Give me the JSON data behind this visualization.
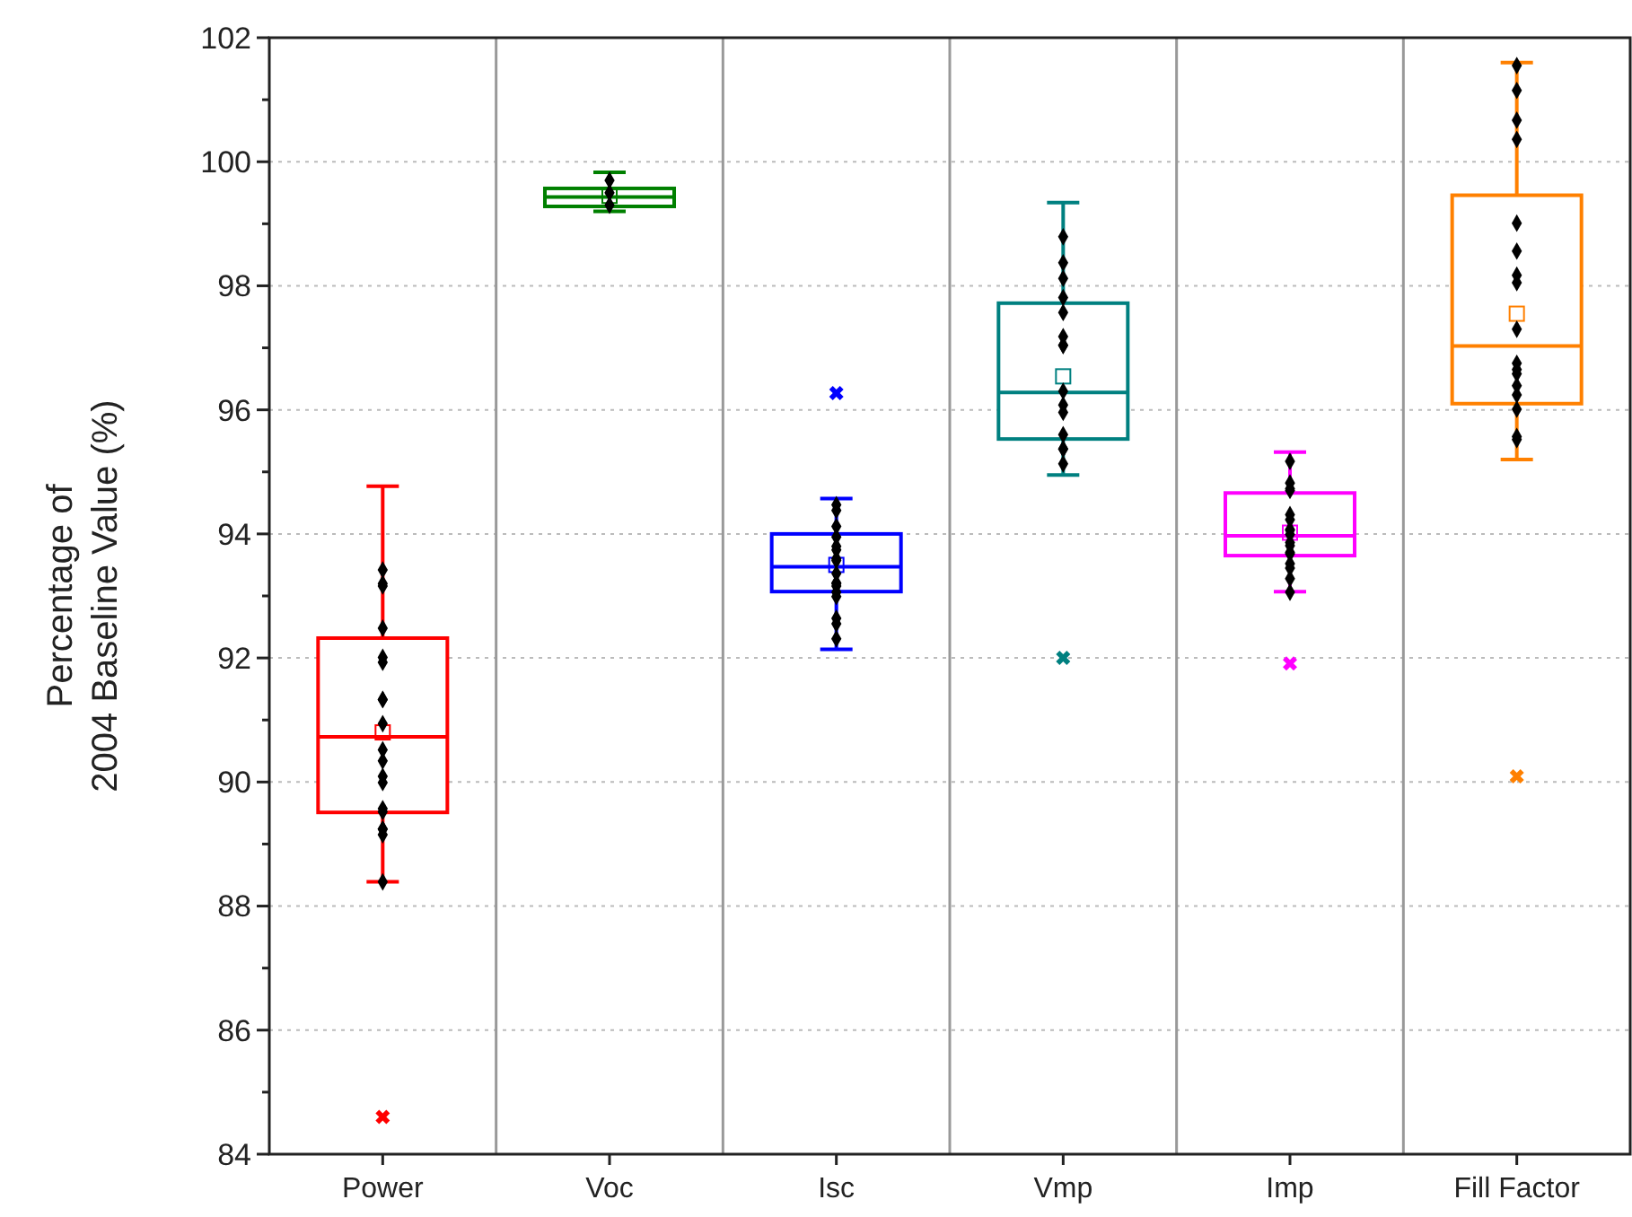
{
  "chart_data": {
    "type": "box",
    "ylabel": "Percentage of\n2004 Baseline Value (%)",
    "categories": [
      "Power",
      "Voc",
      "Isc",
      "Vmp",
      "Imp",
      "Fill Factor"
    ],
    "colors": [
      "#ff0000",
      "#008000",
      "#0000ff",
      "#008080",
      "#ff00ff",
      "#ff8000"
    ],
    "boxes": [
      {
        "low": 88.39,
        "q1": 89.51,
        "median": 90.73,
        "q3": 92.32,
        "high": 94.77,
        "mean": 90.8,
        "outliers": [
          84.6
        ]
      },
      {
        "low": 99.2,
        "q1": 99.28,
        "median": 99.43,
        "q3": 99.57,
        "high": 99.83,
        "mean": 99.45
      },
      {
        "low": 92.14,
        "q1": 93.07,
        "median": 93.47,
        "q3": 94.0,
        "high": 94.57,
        "mean": 93.5,
        "outliers": [
          96.27
        ]
      },
      {
        "low": 94.95,
        "q1": 95.53,
        "median": 96.28,
        "q3": 97.72,
        "high": 99.34,
        "mean": 96.54,
        "outliers": [
          92.0
        ]
      },
      {
        "low": 93.07,
        "q1": 93.65,
        "median": 93.97,
        "q3": 94.66,
        "high": 95.32,
        "mean": 94.02,
        "outliers": [
          91.91
        ]
      },
      {
        "low": 95.2,
        "q1": 96.1,
        "median": 97.03,
        "q3": 99.46,
        "high": 101.6,
        "mean": 97.55,
        "outliers": [
          90.09
        ]
      }
    ],
    "series": [
      {
        "type": "scatter",
        "color": "#000000",
        "marker": "diamond",
        "x": [
          "Power",
          "Power",
          "Power",
          "Power",
          "Power",
          "Power",
          "Power",
          "Power",
          "Power",
          "Power",
          "Power",
          "Power",
          "Power",
          "Power",
          "Power",
          "Power",
          "Power",
          "Power",
          "Power",
          "Voc",
          "Voc",
          "Voc",
          "Isc",
          "Isc",
          "Isc",
          "Isc",
          "Isc",
          "Isc",
          "Isc",
          "Isc",
          "Isc",
          "Isc",
          "Isc",
          "Isc",
          "Isc",
          "Isc",
          "Isc",
          "Isc",
          "Isc",
          "Vmp",
          "Vmp",
          "Vmp",
          "Vmp",
          "Vmp",
          "Vmp",
          "Vmp",
          "Vmp",
          "Vmp",
          "Vmp",
          "Vmp",
          "Vmp",
          "Vmp",
          "Vmp",
          "Vmp",
          "Imp",
          "Imp",
          "Imp",
          "Imp",
          "Imp",
          "Imp",
          "Imp",
          "Imp",
          "Imp",
          "Imp",
          "Imp",
          "Imp",
          "Imp",
          "Imp",
          "Imp",
          "Imp",
          "Imp",
          "Fill Factor",
          "Fill Factor",
          "Fill Factor",
          "Fill Factor",
          "Fill Factor",
          "Fill Factor",
          "Fill Factor",
          "Fill Factor",
          "Fill Factor",
          "Fill Factor",
          "Fill Factor",
          "Fill Factor",
          "Fill Factor",
          "Fill Factor",
          "Fill Factor",
          "Fill Factor",
          "Fill Factor"
        ],
        "values": [
          93.42,
          93.16,
          93.2,
          92.48,
          92.01,
          91.93,
          91.33,
          91.33,
          90.94,
          90.52,
          90.34,
          90.09,
          89.99,
          89.57,
          89.52,
          89.24,
          89.24,
          89.15,
          88.39,
          99.7,
          99.5,
          99.3,
          94.47,
          94.38,
          94.12,
          93.95,
          93.8,
          93.74,
          93.6,
          93.57,
          93.36,
          93.21,
          93.16,
          93.2,
          93.06,
          92.99,
          92.64,
          92.55,
          92.31,
          98.79,
          98.37,
          98.12,
          97.81,
          97.57,
          97.18,
          97.04,
          97.04,
          96.3,
          96.08,
          95.96,
          95.6,
          95.37,
          95.37,
          95.13,
          95.17,
          94.82,
          94.73,
          94.7,
          94.31,
          94.23,
          94.07,
          94.06,
          93.99,
          93.86,
          93.81,
          93.7,
          93.68,
          93.52,
          93.45,
          93.28,
          93.06,
          101.55,
          101.15,
          100.67,
          100.36,
          99.01,
          98.56,
          98.17,
          98.05,
          97.3,
          96.75,
          96.65,
          96.58,
          96.39,
          96.24,
          96.01,
          95.57,
          95.52
        ]
      }
    ],
    "ylim": [
      84,
      102
    ],
    "yticks": [
      84,
      {
        "value": 85,
        "label": null
      },
      86,
      {
        "value": 87,
        "label": null
      },
      88,
      {
        "value": 89,
        "label": null
      },
      90,
      {
        "value": 91,
        "label": null
      },
      92,
      {
        "value": 93,
        "label": null
      },
      94,
      {
        "value": 95,
        "label": null
      },
      96,
      {
        "value": 97,
        "label": null
      },
      98,
      {
        "value": 99,
        "label": null
      },
      100,
      {
        "value": 101,
        "label": null
      },
      102
    ],
    "grid": true
  }
}
